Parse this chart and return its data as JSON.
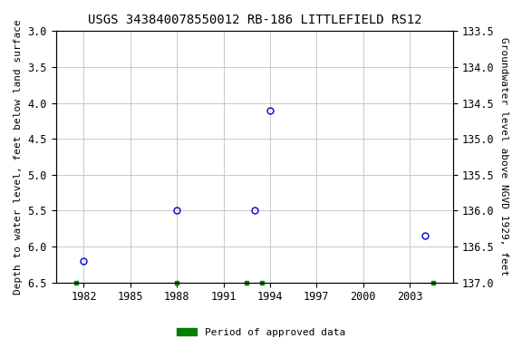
{
  "title": "USGS 343840078550012 RB-186 LITTLEFIELD RS12",
  "ylabel_left": "Depth to water level, feet below land surface",
  "ylabel_right": "Groundwater level above NGVD 1929, feet",
  "ylim_left": [
    3.0,
    6.5
  ],
  "ylim_right_top": 137.0,
  "ylim_right_bottom": 133.5,
  "xlim": [
    1980.2,
    2005.8
  ],
  "xticks": [
    1982,
    1985,
    1988,
    1991,
    1994,
    1997,
    2000,
    2003
  ],
  "yticks_left": [
    3.0,
    3.5,
    4.0,
    4.5,
    5.0,
    5.5,
    6.0,
    6.5
  ],
  "yticks_right": [
    137.0,
    136.5,
    136.0,
    135.5,
    135.0,
    134.5,
    134.0,
    133.5
  ],
  "data_x": [
    1982,
    1988,
    1993,
    1994,
    2004
  ],
  "data_y": [
    6.2,
    5.5,
    5.5,
    4.1,
    5.85
  ],
  "marker_color": "#0000cc",
  "marker_size": 5,
  "green_bars_x": [
    1981.5,
    1988,
    1992.5,
    1993.5,
    2004.5
  ],
  "green_bar_color": "#008000",
  "background_color": "#ffffff",
  "grid_color": "#c0c0c0",
  "title_fontsize": 10,
  "axis_label_fontsize": 8,
  "tick_fontsize": 8.5,
  "legend_label": "Period of approved data"
}
